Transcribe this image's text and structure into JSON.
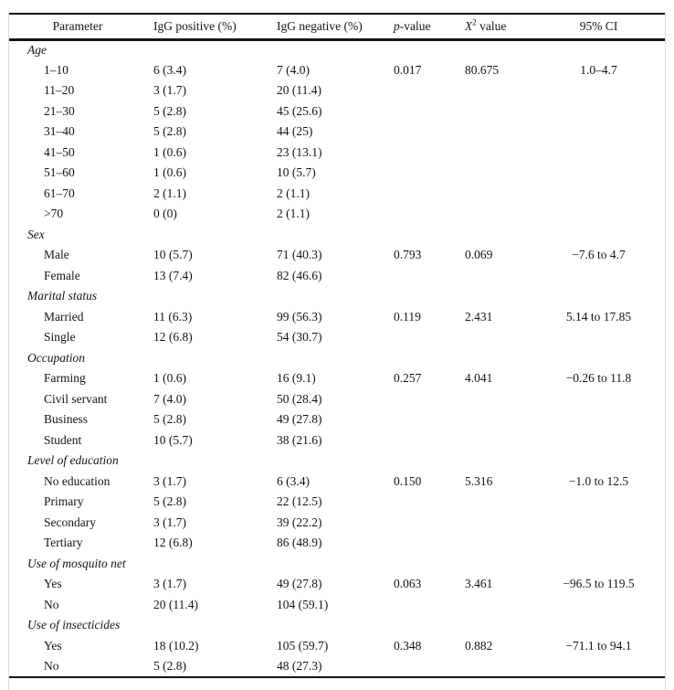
{
  "page": {
    "background": "#ffffff",
    "text_color": "#141414",
    "rule_color": "#141414",
    "frame_color": "#d9d9d9"
  },
  "table": {
    "headers": {
      "parameter": "Parameter",
      "igg_positive": "IgG positive (%)",
      "igg_negative": "IgG negative (%)",
      "p_italic": "p",
      "p_rest": "-value",
      "chi_base": "X",
      "chi_sup": "2",
      "chi_rest": " value",
      "ci": "95% CI"
    },
    "sections": [
      {
        "label": "Age",
        "rows": [
          {
            "parameter": "1–10",
            "igg_positive": "6 (3.4)",
            "igg_negative": "7 (4.0)",
            "p_value": "0.017",
            "chi_value": "80.675",
            "ci": "1.0–4.7"
          },
          {
            "parameter": "11–20",
            "igg_positive": "3 (1.7)",
            "igg_negative": "20 (11.4)",
            "p_value": "",
            "chi_value": "",
            "ci": ""
          },
          {
            "parameter": "21–30",
            "igg_positive": "5 (2.8)",
            "igg_negative": "45 (25.6)",
            "p_value": "",
            "chi_value": "",
            "ci": ""
          },
          {
            "parameter": "31–40",
            "igg_positive": "5 (2.8)",
            "igg_negative": "44 (25)",
            "p_value": "",
            "chi_value": "",
            "ci": ""
          },
          {
            "parameter": "41–50",
            "igg_positive": "1 (0.6)",
            "igg_negative": "23 (13.1)",
            "p_value": "",
            "chi_value": "",
            "ci": ""
          },
          {
            "parameter": "51–60",
            "igg_positive": "1 (0.6)",
            "igg_negative": "10 (5.7)",
            "p_value": "",
            "chi_value": "",
            "ci": ""
          },
          {
            "parameter": "61–70",
            "igg_positive": "2 (1.1)",
            "igg_negative": "2 (1.1)",
            "p_value": "",
            "chi_value": "",
            "ci": ""
          },
          {
            "parameter": ">70",
            "igg_positive": "0 (0)",
            "igg_negative": "2 (1.1)",
            "p_value": "",
            "chi_value": "",
            "ci": ""
          }
        ]
      },
      {
        "label": "Sex",
        "rows": [
          {
            "parameter": "Male",
            "igg_positive": "10 (5.7)",
            "igg_negative": "71 (40.3)",
            "p_value": "0.793",
            "chi_value": "0.069",
            "ci": "−7.6 to 4.7"
          },
          {
            "parameter": "Female",
            "igg_positive": "13 (7.4)",
            "igg_negative": "82 (46.6)",
            "p_value": "",
            "chi_value": "",
            "ci": ""
          }
        ]
      },
      {
        "label": "Marital status",
        "rows": [
          {
            "parameter": "Married",
            "igg_positive": "11 (6.3)",
            "igg_negative": "99 (56.3)",
            "p_value": "0.119",
            "chi_value": "2.431",
            "ci": "5.14 to 17.85"
          },
          {
            "parameter": "Single",
            "igg_positive": "12 (6.8)",
            "igg_negative": "54 (30.7)",
            "p_value": "",
            "chi_value": "",
            "ci": ""
          }
        ]
      },
      {
        "label": "Occupation",
        "rows": [
          {
            "parameter": "Farming",
            "igg_positive": "1 (0.6)",
            "igg_negative": "16 (9.1)",
            "p_value": "0.257",
            "chi_value": "4.041",
            "ci": "−0.26 to 11.8"
          },
          {
            "parameter": "Civil servant",
            "igg_positive": "7 (4.0)",
            "igg_negative": "50 (28.4)",
            "p_value": "",
            "chi_value": "",
            "ci": ""
          },
          {
            "parameter": "Business",
            "igg_positive": "5 (2.8)",
            "igg_negative": "49 (27.8)",
            "p_value": "",
            "chi_value": "",
            "ci": ""
          },
          {
            "parameter": "Student",
            "igg_positive": "10 (5.7)",
            "igg_negative": "38 (21.6)",
            "p_value": "",
            "chi_value": "",
            "ci": ""
          }
        ]
      },
      {
        "label": "Level of education",
        "rows": [
          {
            "parameter": "No education",
            "igg_positive": "3 (1.7)",
            "igg_negative": "6 (3.4)",
            "p_value": "0.150",
            "chi_value": "5.316",
            "ci": "−1.0 to 12.5"
          },
          {
            "parameter": "Primary",
            "igg_positive": "5 (2.8)",
            "igg_negative": "22 (12.5)",
            "p_value": "",
            "chi_value": "",
            "ci": ""
          },
          {
            "parameter": "Secondary",
            "igg_positive": "3 (1.7)",
            "igg_negative": "39 (22.2)",
            "p_value": "",
            "chi_value": "",
            "ci": ""
          },
          {
            "parameter": "Tertiary",
            "igg_positive": "12 (6.8)",
            "igg_negative": "86 (48.9)",
            "p_value": "",
            "chi_value": "",
            "ci": ""
          }
        ]
      },
      {
        "label": "Use of mosquito net",
        "rows": [
          {
            "parameter": "Yes",
            "igg_positive": "3 (1.7)",
            "igg_negative": "49 (27.8)",
            "p_value": "0.063",
            "chi_value": "3.461",
            "ci": "−96.5 to 119.5"
          },
          {
            "parameter": "No",
            "igg_positive": "20 (11.4)",
            "igg_negative": "104 (59.1)",
            "p_value": "",
            "chi_value": "",
            "ci": ""
          }
        ]
      },
      {
        "label": "Use of insecticides",
        "rows": [
          {
            "parameter": "Yes",
            "igg_positive": "18 (10.2)",
            "igg_negative": "105 (59.7)",
            "p_value": "0.348",
            "chi_value": "0.882",
            "ci": "−71.1 to 94.1"
          },
          {
            "parameter": "No",
            "igg_positive": "5 (2.8)",
            "igg_negative": "48 (27.3)",
            "p_value": "",
            "chi_value": "",
            "ci": ""
          }
        ]
      }
    ]
  }
}
